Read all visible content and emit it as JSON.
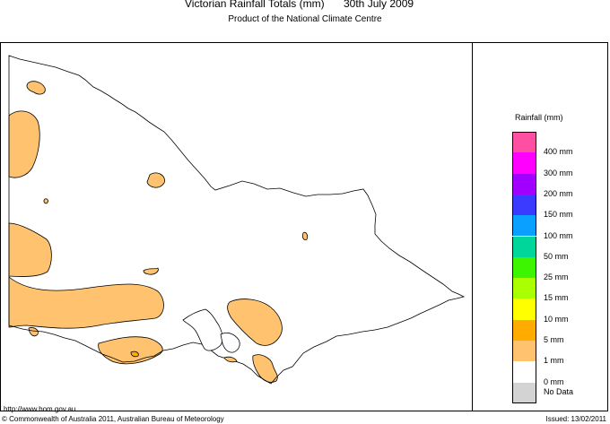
{
  "header": {
    "title": "Victorian Rainfall Totals (mm)",
    "date": "30th July 2009",
    "subtitle": "Product of the National Climate Centre"
  },
  "legend": {
    "title": "Rainfall (mm)",
    "entries": [
      {
        "label": "400 mm",
        "color": "#ff4fa3"
      },
      {
        "label": "300 mm",
        "color": "#ff00ff"
      },
      {
        "label": "200 mm",
        "color": "#a100ff"
      },
      {
        "label": "150 mm",
        "color": "#3b3bff"
      },
      {
        "label": "100 mm",
        "color": "#0aa0ff"
      },
      {
        "label": "50 mm",
        "color": "#00d69a"
      },
      {
        "label": "25 mm",
        "color": "#3df500"
      },
      {
        "label": "15 mm",
        "color": "#aaff00"
      },
      {
        "label": "10 mm",
        "color": "#ffff00"
      },
      {
        "label": "5 mm",
        "color": "#ffab00"
      },
      {
        "label": "1 mm",
        "color": "#ffc370"
      },
      {
        "label": "0 mm",
        "color": "#ffffff"
      }
    ],
    "no_data": {
      "label": "No Data",
      "color": "#d3d3d3"
    }
  },
  "footer": {
    "url": "http://www.bom.gov.au",
    "copyright": "© Commonwealth of Australia 2011, Australian Bureau of Meteorology",
    "issued": "Issued: 13/02/2011"
  },
  "map": {
    "rain_color": "#ffc370",
    "outline_color": "#000000"
  }
}
